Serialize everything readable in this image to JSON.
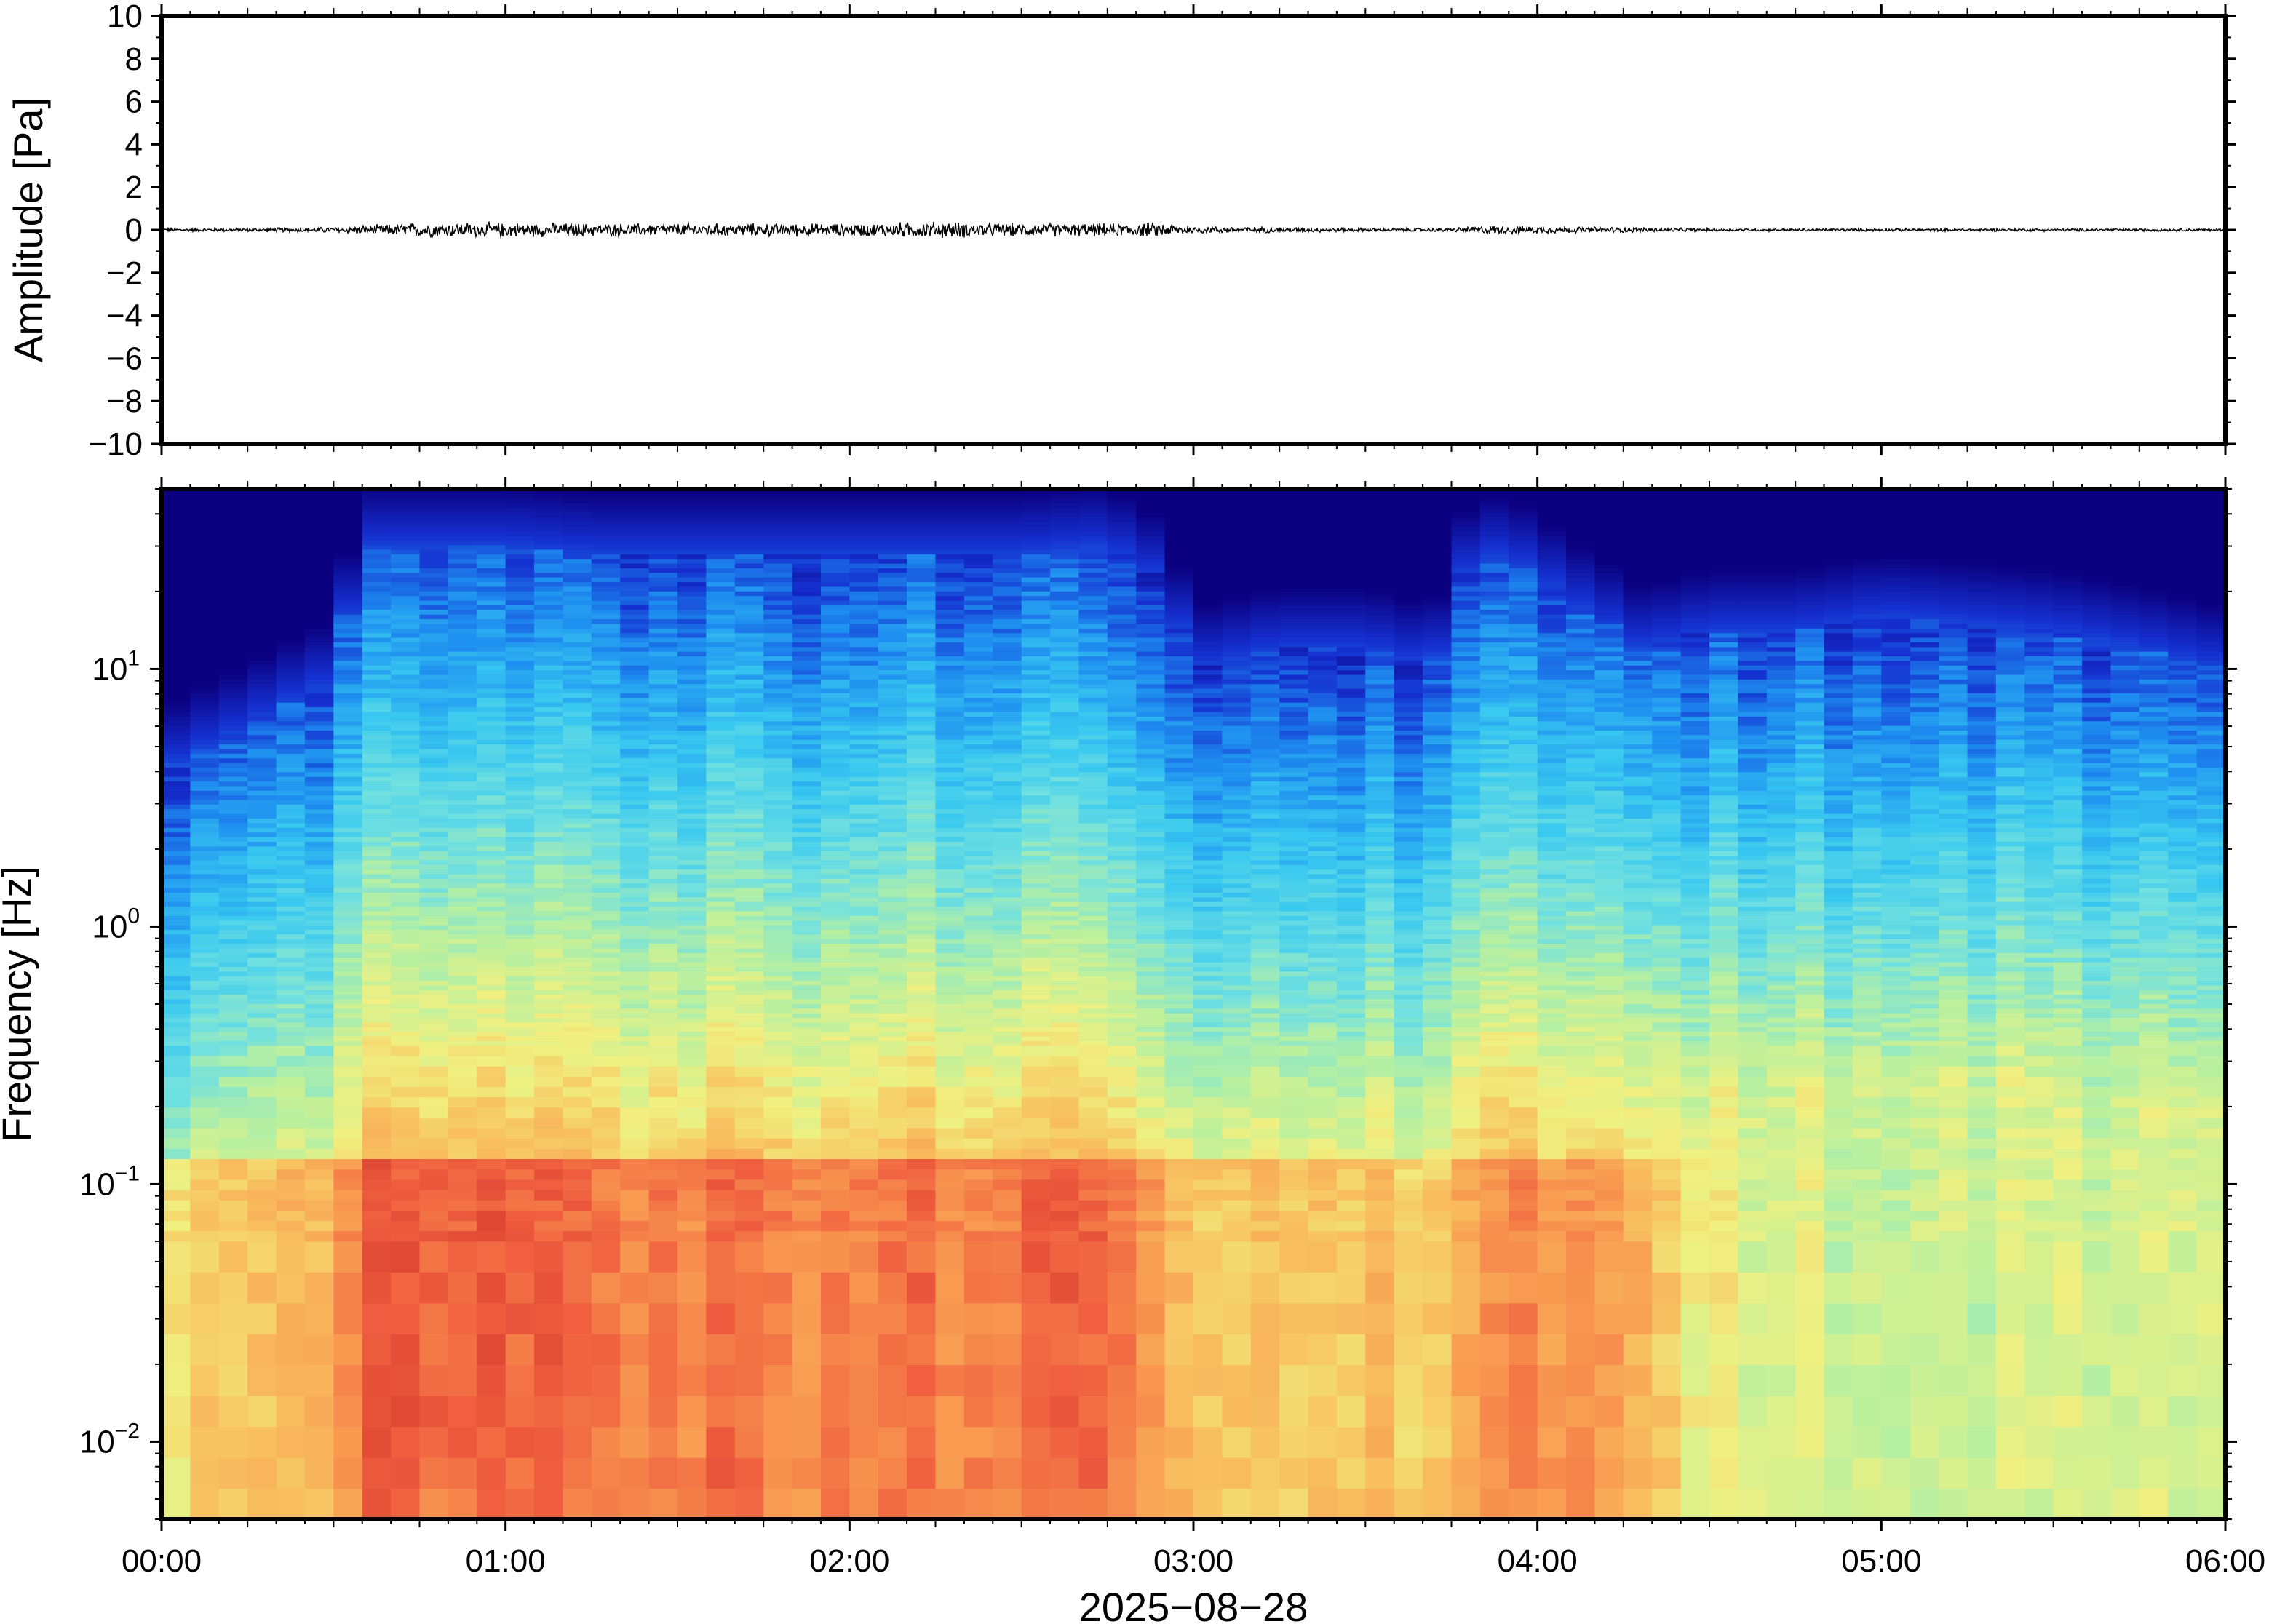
{
  "chart_data": [
    {
      "type": "line",
      "panel": "waveform",
      "ylabel": "Amplitude [Pa]",
      "ylim": [
        -10,
        10
      ],
      "yticks": [
        10,
        8,
        6,
        4,
        2,
        0,
        -2,
        -4,
        -6,
        -8,
        -10
      ],
      "ytick_labels": [
        "10",
        "8",
        "6",
        "4",
        "2",
        "0",
        "−2",
        "−4",
        "−6",
        "−8",
        "−10"
      ],
      "x_range_hours": [
        0,
        6
      ],
      "line_color": "#000000",
      "series": [
        {
          "x_hours": [
            0.0,
            0.25,
            0.5,
            0.6,
            0.75,
            1.0,
            1.25,
            1.5,
            1.75,
            2.0,
            2.25,
            2.5,
            2.75,
            2.9,
            3.0,
            3.25,
            3.5,
            3.75,
            3.85,
            4.0,
            4.25,
            4.5,
            4.75,
            5.0,
            5.25,
            5.5,
            5.75,
            6.0
          ],
          "envelope_pa": [
            0.1,
            0.1,
            0.15,
            0.25,
            0.4,
            0.4,
            0.35,
            0.35,
            0.35,
            0.35,
            0.45,
            0.35,
            0.35,
            0.4,
            0.2,
            0.15,
            0.1,
            0.1,
            0.25,
            0.2,
            0.15,
            0.08,
            0.08,
            0.08,
            0.08,
            0.08,
            0.08,
            0.08
          ]
        }
      ]
    },
    {
      "type": "heatmap",
      "panel": "spectrogram",
      "ylabel": "Frequency [Hz]",
      "yscale": "log",
      "ylim_hz": [
        0.005,
        50
      ],
      "yticks_hz": [
        10,
        1,
        0.1,
        0.01
      ],
      "ytick_labels": [
        {
          "base": "10",
          "exp": "1"
        },
        {
          "base": "10",
          "exp": "0"
        },
        {
          "base": "10",
          "exp": "−1"
        },
        {
          "base": "10",
          "exp": "−2"
        }
      ],
      "xlabel": "2025−08−28",
      "xticks": [
        "00:00",
        "01:00",
        "02:00",
        "03:00",
        "04:00",
        "05:00",
        "06:00"
      ],
      "colormap": [
        "#0b0080",
        "#1530d0",
        "#1e8ef0",
        "#38c8f0",
        "#70e0e0",
        "#b8f0a0",
        "#f0f080",
        "#f8c060",
        "#f89850",
        "#f06040",
        "#d03028"
      ],
      "x_hours": [
        0.0,
        0.25,
        0.5,
        0.62,
        0.75,
        1.0,
        1.25,
        1.5,
        1.75,
        2.0,
        2.25,
        2.5,
        2.7,
        2.85,
        3.0,
        3.25,
        3.5,
        3.7,
        3.8,
        3.9,
        4.1,
        4.3,
        4.5,
        4.75,
        5.0,
        5.25,
        5.5,
        5.75,
        6.0
      ],
      "upper_edge_hz": [
        4,
        6,
        9,
        30,
        30,
        30,
        28,
        28,
        28,
        28,
        28,
        28,
        30,
        26,
        10,
        12,
        12,
        10,
        25,
        28,
        18,
        12,
        14,
        14,
        16,
        15,
        14,
        12,
        10
      ],
      "hot_band": {
        "low_hz": 0.02,
        "high_hz": 0.12
      },
      "overall_level": [
        0.55,
        0.55,
        0.65,
        0.85,
        0.85,
        0.85,
        0.8,
        0.8,
        0.8,
        0.8,
        0.8,
        0.8,
        0.85,
        0.8,
        0.6,
        0.6,
        0.62,
        0.55,
        0.7,
        0.75,
        0.72,
        0.6,
        0.45,
        0.4,
        0.4,
        0.4,
        0.4,
        0.4,
        0.4
      ]
    }
  ]
}
